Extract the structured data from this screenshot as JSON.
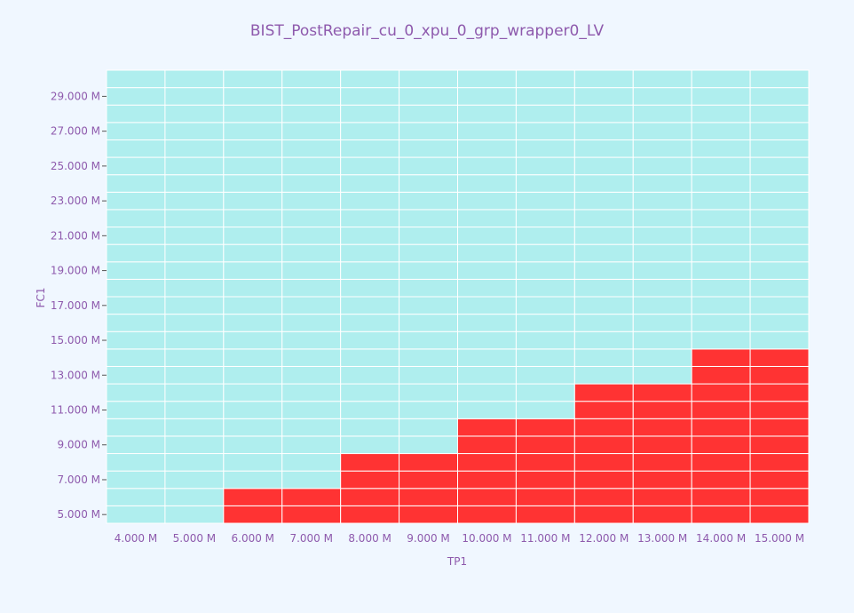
{
  "chart_data": {
    "type": "heatmap",
    "title": "BIST_PostRepair_cu_0_xpu_0_grp_wrapper0_LV",
    "xlabel": "TP1",
    "ylabel": "FC1",
    "x": [
      "4.000 M",
      "5.000 M",
      "6.000 M",
      "7.000 M",
      "8.000 M",
      "9.000 M",
      "10.000 M",
      "11.000 M",
      "12.000 M",
      "13.000 M",
      "14.000 M",
      "15.000 M"
    ],
    "x_values": [
      4,
      5,
      6,
      7,
      8,
      9,
      10,
      11,
      12,
      13,
      14,
      15
    ],
    "y": [
      "5.000 M",
      "6.000 M",
      "7.000 M",
      "8.000 M",
      "9.000 M",
      "10.000 M",
      "11.000 M",
      "12.000 M",
      "13.000 M",
      "14.000 M",
      "15.000 M",
      "16.000 M",
      "17.000 M",
      "18.000 M",
      "19.000 M",
      "20.000 M",
      "21.000 M",
      "22.000 M",
      "23.000 M",
      "24.000 M",
      "25.000 M",
      "26.000 M",
      "27.000 M",
      "28.000 M",
      "29.000 M",
      "30.000 M"
    ],
    "y_values": [
      5,
      6,
      7,
      8,
      9,
      10,
      11,
      12,
      13,
      14,
      15,
      16,
      17,
      18,
      19,
      20,
      21,
      22,
      23,
      24,
      25,
      26,
      27,
      28,
      29,
      30
    ],
    "y_tick_labels": [
      "5.000 M",
      "7.000 M",
      "9.000 M",
      "11.000 M",
      "13.000 M",
      "15.000 M",
      "17.000 M",
      "19.000 M",
      "21.000 M",
      "23.000 M",
      "25.000 M",
      "27.000 M",
      "29.000 M"
    ],
    "y_tick_values": [
      5,
      7,
      9,
      11,
      13,
      15,
      17,
      19,
      21,
      23,
      25,
      27,
      29
    ],
    "fail_threshold_fc1": [
      4,
      4,
      6,
      6,
      8,
      8,
      10,
      10,
      12,
      12,
      14,
      14
    ],
    "pass_color": "#afeeee",
    "fail_color": "#ff3333",
    "grid": true
  }
}
